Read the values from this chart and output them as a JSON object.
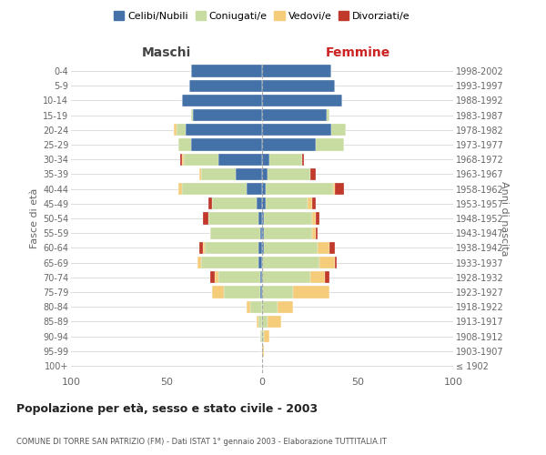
{
  "age_groups": [
    "100+",
    "95-99",
    "90-94",
    "85-89",
    "80-84",
    "75-79",
    "70-74",
    "65-69",
    "60-64",
    "55-59",
    "50-54",
    "45-49",
    "40-44",
    "35-39",
    "30-34",
    "25-29",
    "20-24",
    "15-19",
    "10-14",
    "5-9",
    "0-4"
  ],
  "birth_years": [
    "≤ 1902",
    "1903-1907",
    "1908-1912",
    "1913-1917",
    "1918-1922",
    "1923-1927",
    "1928-1932",
    "1933-1937",
    "1938-1942",
    "1943-1947",
    "1948-1952",
    "1953-1957",
    "1958-1962",
    "1963-1967",
    "1968-1972",
    "1973-1977",
    "1978-1982",
    "1983-1987",
    "1988-1992",
    "1993-1997",
    "1998-2002"
  ],
  "maschi": {
    "celibe": [
      0,
      0,
      0,
      0,
      0,
      1,
      1,
      2,
      2,
      1,
      2,
      3,
      8,
      14,
      23,
      37,
      40,
      36,
      42,
      38,
      37
    ],
    "coniugato": [
      0,
      0,
      1,
      2,
      6,
      19,
      22,
      30,
      28,
      26,
      26,
      23,
      34,
      18,
      18,
      7,
      5,
      1,
      0,
      0,
      0
    ],
    "vedovo": [
      0,
      0,
      0,
      1,
      2,
      6,
      2,
      2,
      1,
      0,
      0,
      0,
      2,
      1,
      1,
      0,
      1,
      0,
      0,
      0,
      0
    ],
    "divorziato": [
      0,
      0,
      0,
      0,
      0,
      0,
      2,
      0,
      2,
      0,
      3,
      2,
      0,
      0,
      1,
      0,
      0,
      0,
      0,
      0,
      0
    ]
  },
  "femmine": {
    "nubile": [
      0,
      0,
      0,
      0,
      0,
      0,
      0,
      0,
      1,
      1,
      1,
      2,
      2,
      3,
      4,
      28,
      36,
      34,
      42,
      38,
      36
    ],
    "coniugata": [
      0,
      0,
      1,
      3,
      8,
      16,
      25,
      30,
      28,
      25,
      25,
      22,
      35,
      22,
      17,
      15,
      8,
      1,
      0,
      0,
      0
    ],
    "vedova": [
      0,
      1,
      3,
      7,
      8,
      19,
      8,
      8,
      6,
      2,
      2,
      2,
      1,
      0,
      0,
      0,
      0,
      0,
      0,
      0,
      0
    ],
    "divorziata": [
      0,
      0,
      0,
      0,
      0,
      0,
      2,
      1,
      3,
      1,
      2,
      2,
      5,
      3,
      1,
      0,
      0,
      0,
      0,
      0,
      0
    ]
  },
  "colors": {
    "celibe": "#4472a8",
    "coniugato": "#c8dba0",
    "vedovo": "#f5cc7a",
    "divorziato": "#c0392b"
  },
  "xlim": 100,
  "title": "Popolazione per età, sesso e stato civile - 2003",
  "subtitle": "COMUNE DI TORRE SAN PATRIZIO (FM) - Dati ISTAT 1° gennaio 2003 - Elaborazione TUTTITALIA.IT",
  "xlabel_left": "Maschi",
  "xlabel_right": "Femmine",
  "ylabel_left": "Fasce di età",
  "ylabel_right": "Anni di nascita"
}
